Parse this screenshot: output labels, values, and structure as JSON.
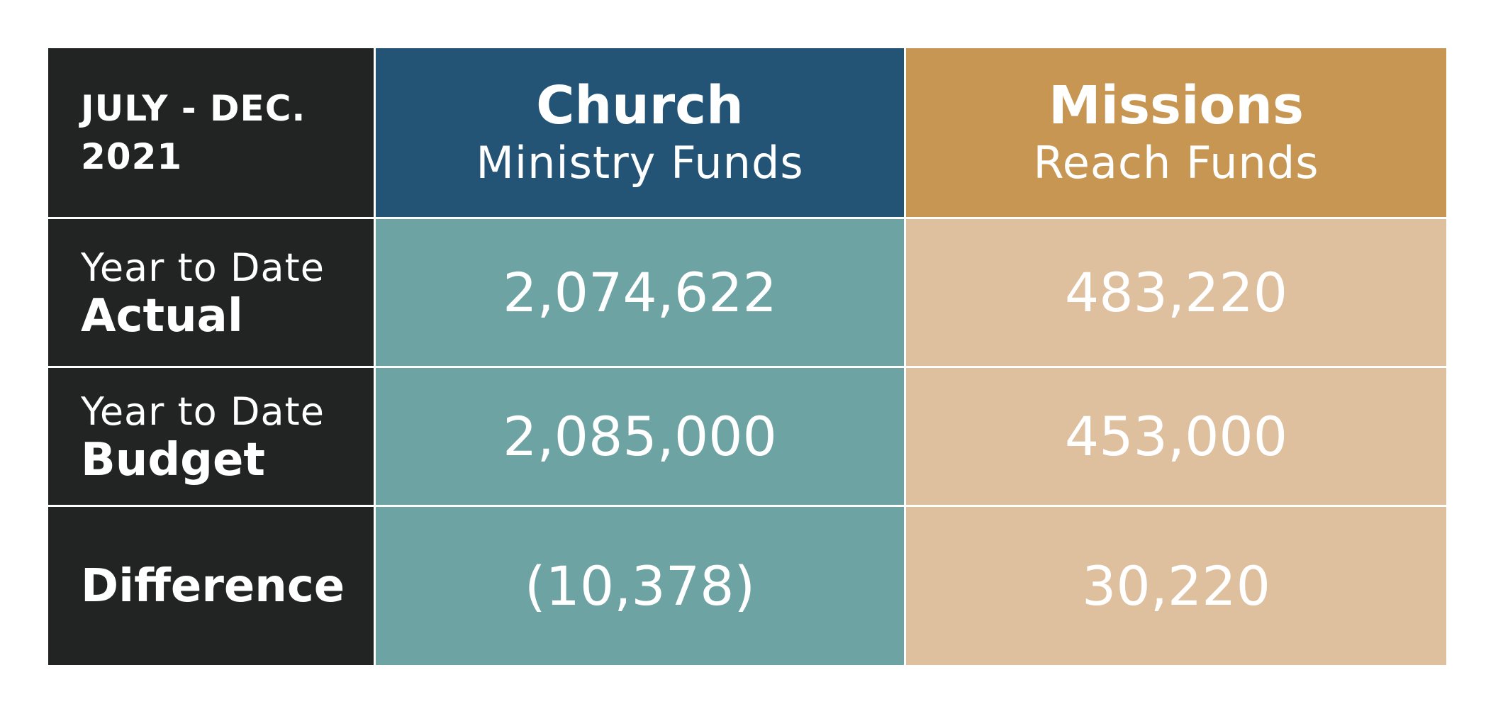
{
  "chart_data": {
    "type": "table",
    "header": {
      "period_line1": "JULY - DEC.",
      "period_line2": "2021",
      "columns": [
        {
          "title": "Church",
          "subtitle": "Ministry Funds",
          "color": "#235375",
          "cell_color": "#6ea3a4"
        },
        {
          "title": "Missions",
          "subtitle": "Reach Funds",
          "color": "#c79652",
          "cell_color": "#dec09f"
        }
      ]
    },
    "rows": [
      {
        "label_pre": "Year to Date",
        "label_main": "Actual",
        "values": [
          "2,074,622",
          "483,220"
        ]
      },
      {
        "label_pre": "Year to Date",
        "label_main": "Budget",
        "values": [
          "2,085,000",
          "453,000"
        ]
      },
      {
        "label_pre": "",
        "label_main": "Difference",
        "values": [
          "(10,378)",
          "30,220"
        ]
      }
    ]
  },
  "colors": {
    "label_bg": "#222424",
    "text": "#ffffff"
  }
}
